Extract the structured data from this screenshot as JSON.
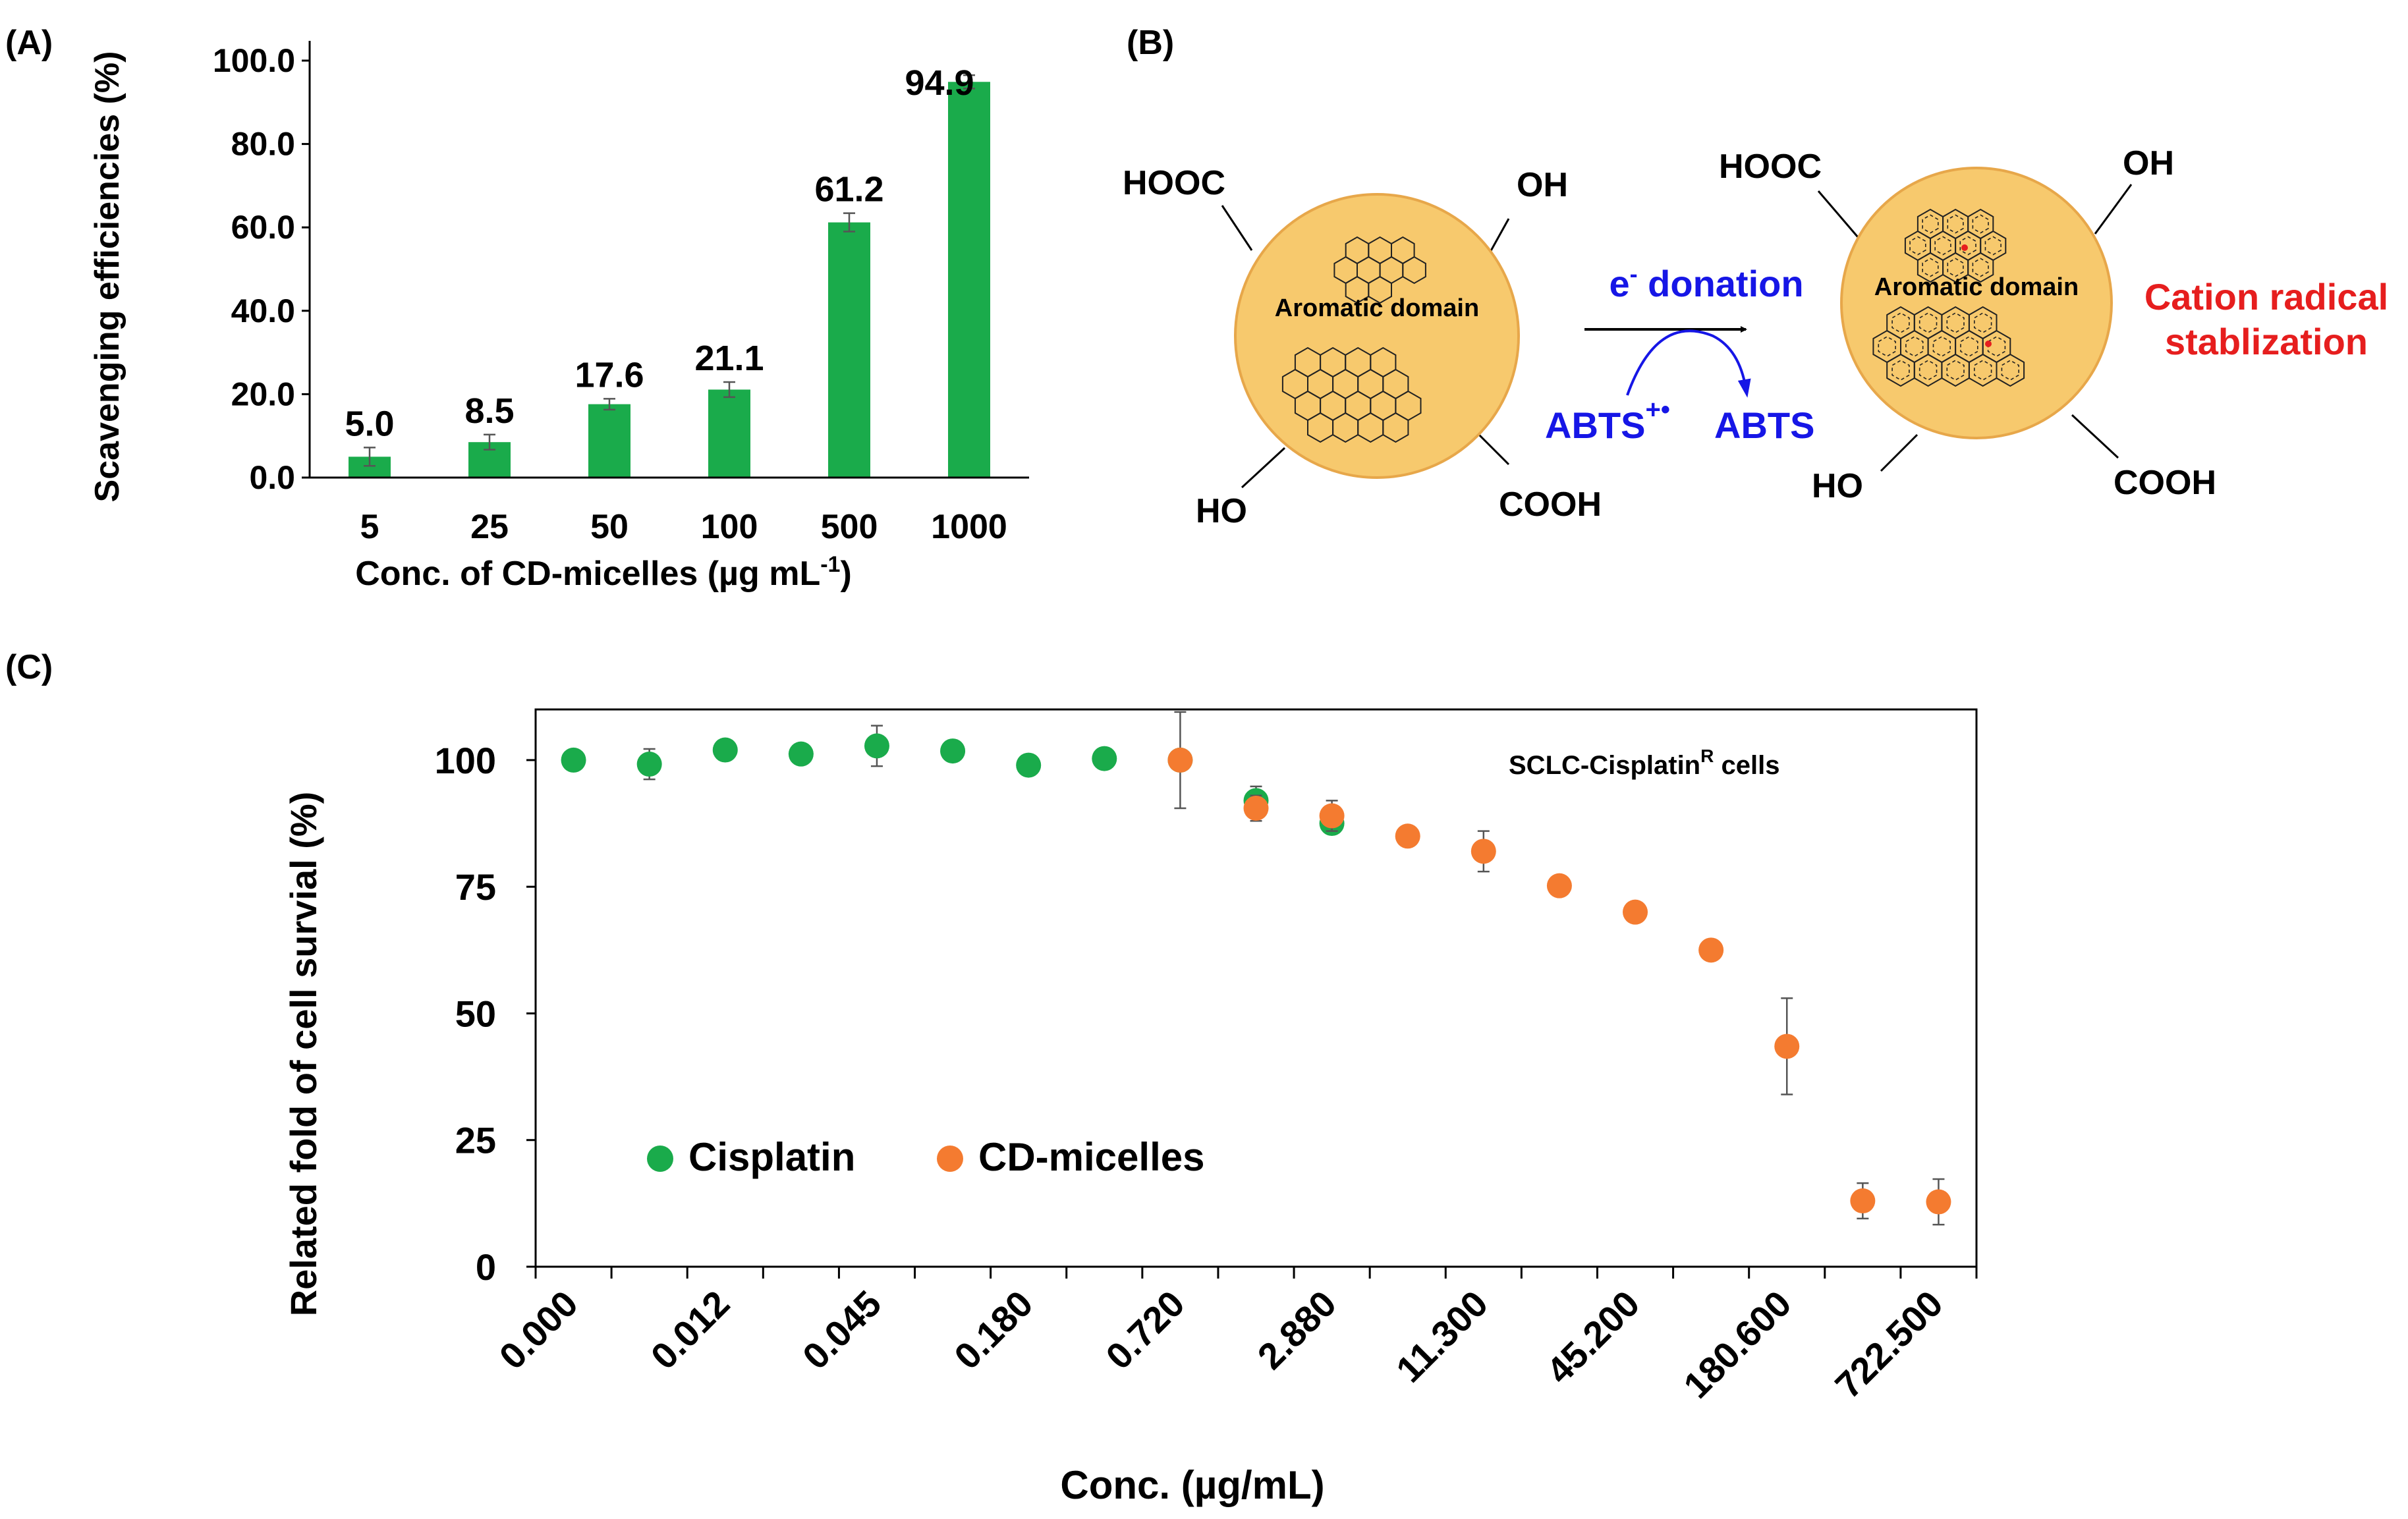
{
  "panel_labels": {
    "a": "(A)",
    "b": "(B)",
    "c": "(C)"
  },
  "colors": {
    "green": "#1aab4b",
    "orange": "#f47b30",
    "blue": "#1616e6",
    "red": "#e61e1e",
    "circle_fill": "#f7c96d",
    "circle_stroke": "#e7a74a",
    "error_bar": "#555555"
  },
  "chart_data": [
    {
      "type": "bar",
      "panel": "A",
      "categories": [
        "5",
        "25",
        "50",
        "100",
        "500",
        "1000"
      ],
      "values": [
        5.0,
        8.5,
        17.6,
        21.1,
        61.2,
        94.9
      ],
      "value_labels": [
        "5.0",
        "8.5",
        "17.6",
        "21.1",
        "61.2",
        "94.9"
      ],
      "errors": [
        2.2,
        1.8,
        1.3,
        1.8,
        2.2,
        1.6
      ],
      "ylim": [
        0,
        100
      ],
      "yticks": [
        "0.0",
        "20.0",
        "40.0",
        "60.0",
        "80.0",
        "100.0"
      ],
      "ytick_values": [
        0,
        20,
        40,
        60,
        80,
        100
      ],
      "ylabel": "Scavenging efficiencies (%)",
      "xlabel_prefix": "Conc. of CD-micelles (µg mL",
      "xlabel_sup": "-1",
      "xlabel_suffix": ")",
      "title": ""
    },
    {
      "type": "scatter",
      "panel": "C",
      "annotation_main": "SCLC-Cisplatin",
      "annotation_sup": "R",
      "annotation_rest": " cells",
      "xlabel": "Conc. (µg/mL)",
      "ylabel": "Related fold of cell survial (%)",
      "ylim": [
        0,
        110
      ],
      "yticks": [
        "0",
        "25",
        "50",
        "75",
        "100"
      ],
      "ytick_values": [
        0,
        25,
        50,
        75,
        100
      ],
      "xticks": [
        "0.000",
        "0.012",
        "0.045",
        "0.180",
        "0.720",
        "2.880",
        "11.300",
        "45.200",
        "180.600",
        "722.500"
      ],
      "xtick_positions": [
        1,
        3,
        5,
        7,
        9,
        11,
        13,
        15,
        17,
        19
      ],
      "x_range": [
        0.5,
        19.5
      ],
      "series": [
        {
          "name": "Cisplatin",
          "color_key": "green",
          "x": [
            1,
            2,
            3,
            4,
            5,
            6,
            7,
            8,
            9,
            10,
            11
          ],
          "y": [
            100,
            99.2,
            102,
            101.2,
            102.8,
            101.8,
            99,
            100.3,
            100,
            92,
            87.5
          ],
          "err": [
            0,
            3,
            0,
            0,
            4,
            0,
            0,
            0,
            0,
            2.8,
            2
          ]
        },
        {
          "name": "CD-micelles",
          "color_key": "orange",
          "x": [
            9,
            10,
            11,
            12,
            13,
            14,
            15,
            16,
            17,
            18,
            19
          ],
          "y": [
            100,
            90.5,
            89,
            85,
            82,
            75.2,
            70,
            62.5,
            43.5,
            13,
            12.8
          ],
          "err": [
            9.5,
            2.5,
            3,
            0,
            4,
            0,
            0,
            0,
            9.5,
            3.5,
            4.5
          ]
        }
      ]
    }
  ],
  "diagram": {
    "left_groups": {
      "hooc": "HOOC",
      "oh": "OH",
      "ho": "HO",
      "cooh": "COOH"
    },
    "right_groups": {
      "hooc": "HOOC",
      "oh": "OH",
      "ho": "HO",
      "cooh": "COOH"
    },
    "domain_label_left": "Aromatic domain",
    "domain_label_right": "Aromatic domain",
    "arrow_label_e": "e",
    "arrow_label_sup": "-",
    "arrow_label_rest": " donation",
    "abts_radical": "ABTS",
    "abts_radical_sup": "+•",
    "abts": "ABTS",
    "red_line1": "Cation radical",
    "red_line2": "stablization"
  }
}
